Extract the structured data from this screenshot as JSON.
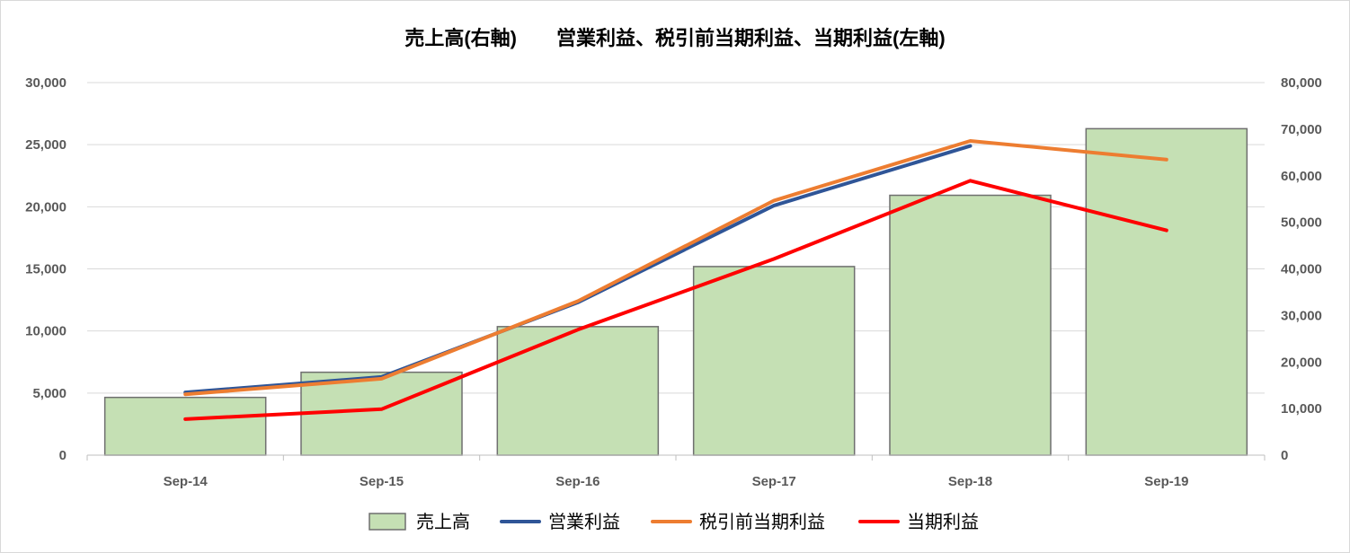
{
  "chart_data": {
    "type": "bar",
    "title": "売上高(右軸)　　営業利益、税引前当期利益、当期利益(左軸)",
    "categories": [
      "Sep-14",
      "Sep-15",
      "Sep-16",
      "Sep-17",
      "Sep-18",
      "Sep-19"
    ],
    "left_axis": {
      "ylim": [
        0,
        30000
      ],
      "ticks": [
        "0",
        "5,000",
        "10,000",
        "15,000",
        "20,000",
        "25,000",
        "30,000"
      ]
    },
    "right_axis": {
      "ylim": [
        0,
        80000
      ],
      "ticks": [
        "0",
        "10,000",
        "20,000",
        "30,000",
        "40,000",
        "50,000",
        "60,000",
        "70,000",
        "80,000"
      ]
    },
    "grid": true,
    "legend_position": "bottom",
    "series": [
      {
        "name": "売上高",
        "kind": "bar",
        "axis": "right",
        "color": "#c5e0b4",
        "stroke": "#6f6f6f",
        "values": [
          12400,
          17800,
          27600,
          40500,
          55800,
          70100
        ]
      },
      {
        "name": "営業利益",
        "kind": "line",
        "axis": "left",
        "color": "#2f5597",
        "values": [
          5050,
          6300,
          12300,
          20100,
          24900,
          null
        ]
      },
      {
        "name": "税引前当期利益",
        "kind": "line",
        "axis": "left",
        "color": "#ed7d31",
        "values": [
          4900,
          6150,
          12400,
          20500,
          25300,
          23800
        ]
      },
      {
        "name": "当期利益",
        "kind": "line",
        "axis": "left",
        "color": "#ff0000",
        "values": [
          2900,
          3700,
          10100,
          15800,
          22100,
          18100
        ]
      }
    ]
  }
}
